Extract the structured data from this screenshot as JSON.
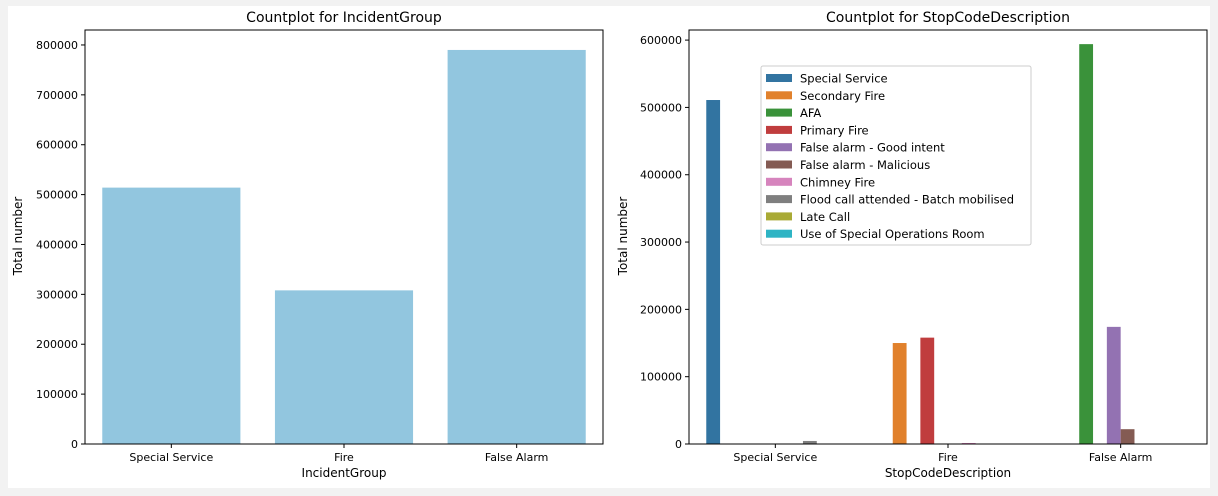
{
  "chart_data": [
    {
      "type": "bar",
      "title": "Countplot for IncidentGroup",
      "xlabel": "IncidentGroup",
      "ylabel": "Total number",
      "categories": [
        "Special Service",
        "Fire",
        "False Alarm"
      ],
      "values": [
        514000,
        308000,
        790000
      ],
      "ylim": [
        0,
        830000
      ],
      "yticks": [
        0,
        100000,
        200000,
        300000,
        400000,
        500000,
        600000,
        700000,
        800000
      ],
      "bar_color": "#92c6df",
      "grid": false
    },
    {
      "type": "bar",
      "title": "Countplot for StopCodeDescription",
      "xlabel": "StopCodeDescription",
      "ylabel": "Total number",
      "categories": [
        "Special Service",
        "Fire",
        "False Alarm"
      ],
      "ylim": [
        0,
        615000
      ],
      "yticks": [
        0,
        100000,
        200000,
        300000,
        400000,
        500000,
        600000
      ],
      "legend_position": "upper-center",
      "grid": false,
      "series": [
        {
          "name": "Special Service",
          "color": "#3274a1",
          "values": [
            511000,
            0,
            0
          ]
        },
        {
          "name": "Secondary Fire",
          "color": "#e1812c",
          "values": [
            0,
            150000,
            0
          ]
        },
        {
          "name": "AFA",
          "color": "#3a923a",
          "values": [
            0,
            0,
            594000
          ]
        },
        {
          "name": "Primary Fire",
          "color": "#c03d3e",
          "values": [
            0,
            158000,
            0
          ]
        },
        {
          "name": "False alarm - Good intent",
          "color": "#9372b2",
          "values": [
            0,
            0,
            174000
          ]
        },
        {
          "name": "False alarm - Malicious",
          "color": "#845b53",
          "values": [
            0,
            0,
            22000
          ]
        },
        {
          "name": "Chimney Fire",
          "color": "#d684bd",
          "values": [
            0,
            1500,
            0
          ]
        },
        {
          "name": "Flood call attended - Batch mobilised",
          "color": "#7f7f7f",
          "values": [
            4500,
            0,
            0
          ]
        },
        {
          "name": "Late Call",
          "color": "#a9aa35",
          "values": [
            0,
            0,
            0
          ]
        },
        {
          "name": "Use of Special Operations Room",
          "color": "#2eb4c4",
          "values": [
            0,
            0,
            0
          ]
        }
      ]
    }
  ]
}
